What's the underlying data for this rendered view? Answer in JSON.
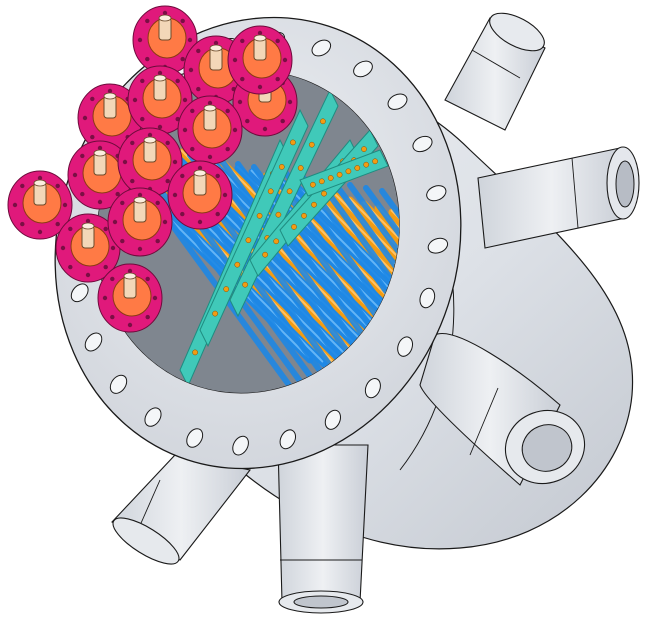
{
  "colors": {
    "background": "#ffffff",
    "vessel": "#dde1e7",
    "vessel_shade": "#c7ccd4",
    "vessel_light": "#eef0f3",
    "outline": "#1a1a1a",
    "interior_shadow": "#9aa0a8",
    "tube_blue": "#1e88e5",
    "tube_blue_light": "#64b5f6",
    "tube_orange": "#f39c12",
    "tube_orange_light": "#ffc266",
    "baffle": "#40c9b9",
    "baffle_dark": "#1f8c80",
    "flange_magenta": "#e0197b",
    "flange_orange": "#ff7a45",
    "stub_cream": "#f3d7b8"
  },
  "icons": {
    "vessel": "pressure-vessel-body",
    "flange": "bolted-flange",
    "nozzle": "pipe-nozzle",
    "tube_bundle": "heat-exchanger-tube-bundle",
    "heater_flange": "heater-terminal-flange"
  },
  "assembly": {
    "bolt_holes_on_main_flange": 24,
    "nozzle_count": 5,
    "heater_flange_count": 14
  }
}
